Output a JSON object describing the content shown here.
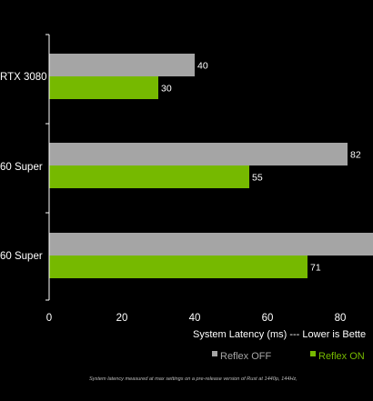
{
  "chart_data": {
    "type": "bar",
    "orientation": "horizontal",
    "categories": [
      "RTX 3080",
      "60 Super",
      "60 Super"
    ],
    "series": [
      {
        "name": "Reflex OFF",
        "values": [
          40,
          82,
          90
        ],
        "color": "#a5a5a5",
        "value_labels": [
          "40",
          "82",
          ""
        ]
      },
      {
        "name": "Reflex ON",
        "values": [
          30,
          55,
          71
        ],
        "color": "#76b900",
        "value_labels": [
          "30",
          "55",
          "71"
        ]
      }
    ],
    "xlabel": "System Latency (ms) --- Lower is Bette",
    "xticks": [
      0,
      20,
      40,
      60,
      80
    ],
    "xlim": [
      0,
      89
    ],
    "grid": false,
    "legend_position": "bottom",
    "footnote": "System latency measured at max settings on a pre-release version of  Rust at 1440p, 144Hz,"
  },
  "colors": {
    "background": "#000000",
    "axis": "#ffffff",
    "text": "#ffffff",
    "footnote": "#bdbdbd"
  }
}
